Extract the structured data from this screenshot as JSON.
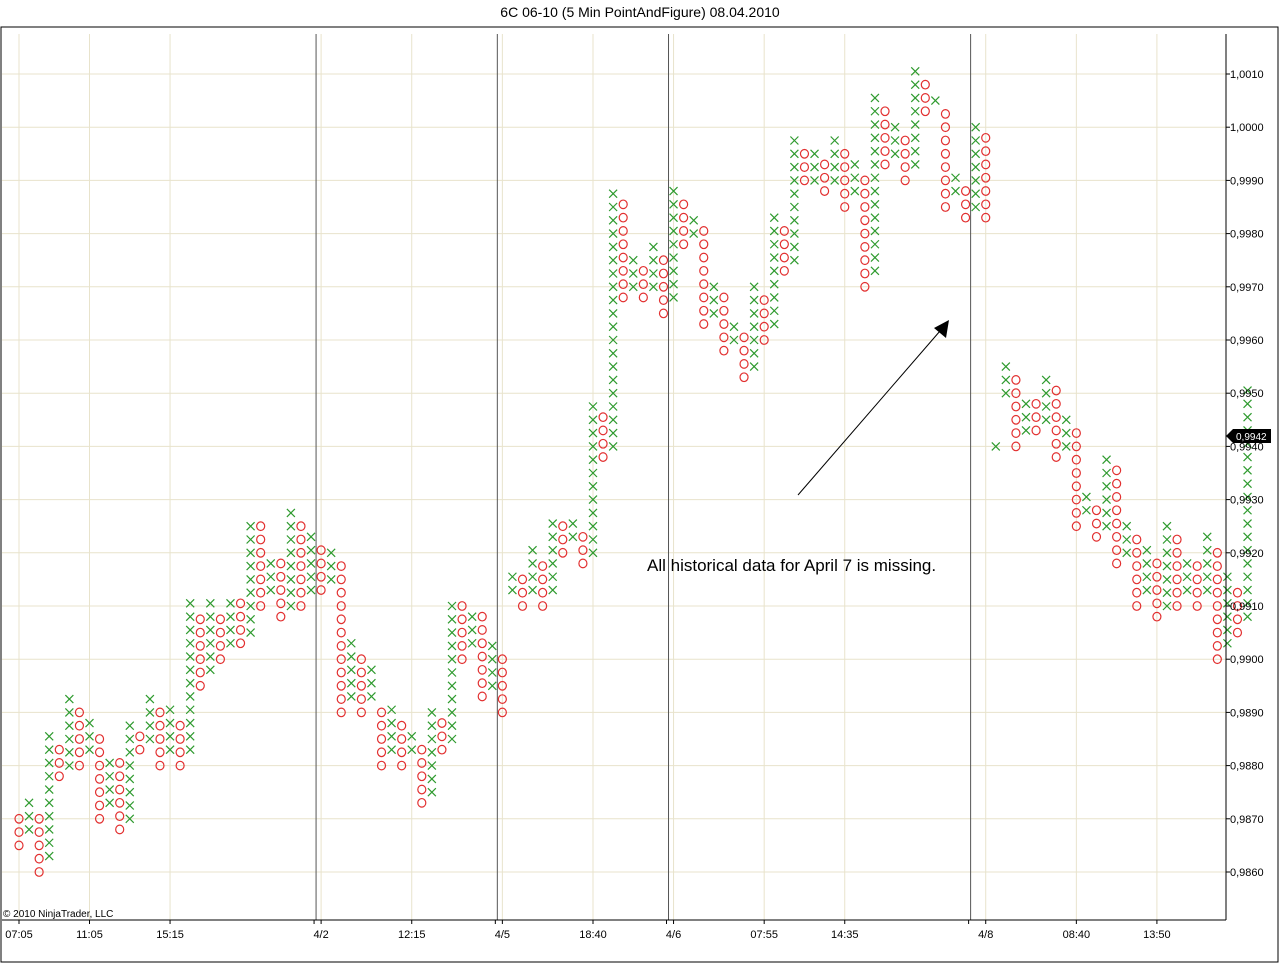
{
  "chart_data": {
    "type": "point-and-figure",
    "title": "6C 06-10 (5 Min PointAndFigure)  08.04.2010",
    "copyright": "© 2010 NinjaTrader, LLC",
    "annotation": "All historical data for April 7 is missing.",
    "box_size": 0.00025,
    "ylim": [
      0.9853,
      1.0018
    ],
    "y_ticks": [
      0.986,
      0.987,
      0.988,
      0.989,
      0.99,
      0.991,
      0.992,
      0.993,
      0.994,
      0.995,
      0.996,
      0.997,
      0.998,
      0.999,
      1.0,
      1.001
    ],
    "y_tick_labels": [
      "0,9860",
      "0,9870",
      "0,9880",
      "0,9890",
      "0,9900",
      "0,9910",
      "0,9920",
      "0,9930",
      "0,9940",
      "0,9950",
      "0,9960",
      "0,9970",
      "0,9980",
      "0,9990",
      "1,0000",
      "1,0010"
    ],
    "x_labels": [
      {
        "col": 0,
        "text": "07:05"
      },
      {
        "col": 7,
        "text": "11:05"
      },
      {
        "col": 15,
        "text": "15:15"
      },
      {
        "col": 30,
        "text": "4/2"
      },
      {
        "col": 39,
        "text": "12:15"
      },
      {
        "col": 48,
        "text": "4/5"
      },
      {
        "col": 57,
        "text": "18:40"
      },
      {
        "col": 65,
        "text": "4/6"
      },
      {
        "col": 74,
        "text": "07:55"
      },
      {
        "col": 82,
        "text": "14:35"
      },
      {
        "col": 96,
        "text": "4/8"
      },
      {
        "col": 105,
        "text": "08:40"
      },
      {
        "col": 113,
        "text": "13:50"
      }
    ],
    "session_breaks_after_col": [
      29,
      47,
      64,
      94
    ],
    "current_price_label": "0,9942",
    "current_price": 0.9942,
    "grid": true,
    "colors": {
      "x": "#2e9a2e",
      "o": "#e23030",
      "grid": "#e8e3cc",
      "separator": "#555555"
    },
    "columns": [
      [
        "o",
        0.9865,
        0.987
      ],
      [
        "x",
        0.9868,
        0.9873
      ],
      [
        "o",
        0.986,
        0.987
      ],
      [
        "x",
        0.9863,
        0.9885
      ],
      [
        "o",
        0.9878,
        0.9883
      ],
      [
        "x",
        0.988,
        0.9893
      ],
      [
        "o",
        0.988,
        0.989
      ],
      [
        "x",
        0.9883,
        0.9888
      ],
      [
        "o",
        0.987,
        0.9885
      ],
      [
        "x",
        0.9873,
        0.988
      ],
      [
        "o",
        0.9868,
        0.988
      ],
      [
        "x",
        0.987,
        0.9888
      ],
      [
        "o",
        0.9883,
        0.9885
      ],
      [
        "x",
        0.9885,
        0.9893
      ],
      [
        "o",
        0.988,
        0.989
      ],
      [
        "x",
        0.9883,
        0.989
      ],
      [
        "o",
        0.988,
        0.9888
      ],
      [
        "x",
        0.9883,
        0.991
      ],
      [
        "o",
        0.9895,
        0.9908
      ],
      [
        "x",
        0.9898,
        0.991
      ],
      [
        "o",
        0.99,
        0.9908
      ],
      [
        "x",
        0.9903,
        0.991
      ],
      [
        "o",
        0.9903,
        0.991
      ],
      [
        "x",
        0.9905,
        0.9925
      ],
      [
        "o",
        0.991,
        0.9925
      ],
      [
        "x",
        0.9913,
        0.9918
      ],
      [
        "o",
        0.9908,
        0.9918
      ],
      [
        "x",
        0.991,
        0.9928
      ],
      [
        "o",
        0.991,
        0.9925
      ],
      [
        "x",
        0.9913,
        0.9923
      ],
      [
        "o",
        0.9913,
        0.992
      ],
      [
        "x",
        0.9915,
        0.992
      ],
      [
        "o",
        0.989,
        0.9918
      ],
      [
        "x",
        0.9893,
        0.9903
      ],
      [
        "o",
        0.989,
        0.99
      ],
      [
        "x",
        0.9893,
        0.9898
      ],
      [
        "o",
        0.988,
        0.989
      ],
      [
        "x",
        0.9883,
        0.989
      ],
      [
        "o",
        0.988,
        0.9888
      ],
      [
        "x",
        0.9883,
        0.9885
      ],
      [
        "o",
        0.9873,
        0.9883
      ],
      [
        "x",
        0.9875,
        0.989
      ],
      [
        "o",
        0.9883,
        0.9888
      ],
      [
        "x",
        0.9885,
        0.991
      ],
      [
        "o",
        0.99,
        0.991
      ],
      [
        "x",
        0.9903,
        0.9908
      ],
      [
        "o",
        0.9893,
        0.9908
      ],
      [
        "x",
        0.9895,
        0.9903
      ],
      [
        "o",
        0.989,
        0.99
      ],
      [
        "x",
        0.9913,
        0.9915
      ],
      [
        "o",
        0.991,
        0.9915
      ],
      [
        "x",
        0.9913,
        0.992
      ],
      [
        "o",
        0.991,
        0.9918
      ],
      [
        "x",
        0.9913,
        0.9925
      ],
      [
        "o",
        0.992,
        0.9925
      ],
      [
        "x",
        0.9923,
        0.9925
      ],
      [
        "o",
        0.9918,
        0.9923
      ],
      [
        "x",
        0.992,
        0.9948
      ],
      [
        "o",
        0.9938,
        0.9945
      ],
      [
        "x",
        0.994,
        0.9988
      ],
      [
        "o",
        0.9968,
        0.9985
      ],
      [
        "x",
        0.997,
        0.9975
      ],
      [
        "o",
        0.9968,
        0.9973
      ],
      [
        "x",
        0.997,
        0.9978
      ],
      [
        "o",
        0.9965,
        0.9975
      ],
      [
        "x",
        0.9968,
        0.9988
      ],
      [
        "o",
        0.9978,
        0.9985
      ],
      [
        "x",
        0.998,
        0.9983
      ],
      [
        "o",
        0.9963,
        0.998
      ],
      [
        "x",
        0.9965,
        0.997
      ],
      [
        "o",
        0.9958,
        0.9968
      ],
      [
        "x",
        0.996,
        0.9963
      ],
      [
        "o",
        0.9953,
        0.996
      ],
      [
        "x",
        0.9955,
        0.997
      ],
      [
        "o",
        0.996,
        0.9968
      ],
      [
        "x",
        0.9963,
        0.9983
      ],
      [
        "o",
        0.9973,
        0.998
      ],
      [
        "x",
        0.9975,
        0.9998
      ],
      [
        "o",
        0.999,
        0.9995
      ],
      [
        "x",
        0.999,
        0.9995
      ],
      [
        "o",
        0.9988,
        0.9993
      ],
      [
        "x",
        0.999,
        0.9998
      ],
      [
        "o",
        0.9985,
        0.9995
      ],
      [
        "x",
        0.9988,
        0.9993
      ],
      [
        "o",
        0.997,
        0.999
      ],
      [
        "x",
        0.9973,
        1.0005
      ],
      [
        "o",
        0.9993,
        1.0003
      ],
      [
        "x",
        0.9995,
        1.0
      ],
      [
        "o",
        0.999,
        0.9998
      ],
      [
        "x",
        0.9993,
        1.001
      ],
      [
        "o",
        1.0003,
        1.0008
      ],
      [
        "x",
        1.0005,
        1.0005
      ],
      [
        "o",
        0.9985,
        1.0003
      ],
      [
        "x",
        0.9988,
        0.999
      ],
      [
        "o",
        0.9983,
        0.9988
      ],
      [
        "x",
        0.9985,
        1.0
      ],
      [
        "o",
        0.9983,
        0.9998
      ],
      [
        "x",
        0.994,
        0.994
      ],
      [
        "x",
        0.995,
        0.9955
      ],
      [
        "o",
        0.994,
        0.9953
      ],
      [
        "x",
        0.9943,
        0.9948
      ],
      [
        "o",
        0.9943,
        0.9948
      ],
      [
        "x",
        0.9945,
        0.9953
      ],
      [
        "o",
        0.9938,
        0.995
      ],
      [
        "x",
        0.994,
        0.9945
      ],
      [
        "o",
        0.9925,
        0.9943
      ],
      [
        "x",
        0.9928,
        0.993
      ],
      [
        "o",
        0.9923,
        0.9928
      ],
      [
        "x",
        0.9925,
        0.9938
      ],
      [
        "o",
        0.9918,
        0.9935
      ],
      [
        "x",
        0.992,
        0.9925
      ],
      [
        "o",
        0.991,
        0.9923
      ],
      [
        "x",
        0.9913,
        0.992
      ],
      [
        "o",
        0.9908,
        0.9918
      ],
      [
        "x",
        0.991,
        0.9925
      ],
      [
        "o",
        0.991,
        0.9923
      ],
      [
        "x",
        0.9913,
        0.9918
      ],
      [
        "o",
        0.991,
        0.9918
      ],
      [
        "x",
        0.9913,
        0.9923
      ],
      [
        "o",
        0.99,
        0.992
      ],
      [
        "x",
        0.9903,
        0.9915
      ],
      [
        "o",
        0.9905,
        0.9913
      ],
      [
        "x",
        0.9908,
        0.995
      ]
    ]
  }
}
